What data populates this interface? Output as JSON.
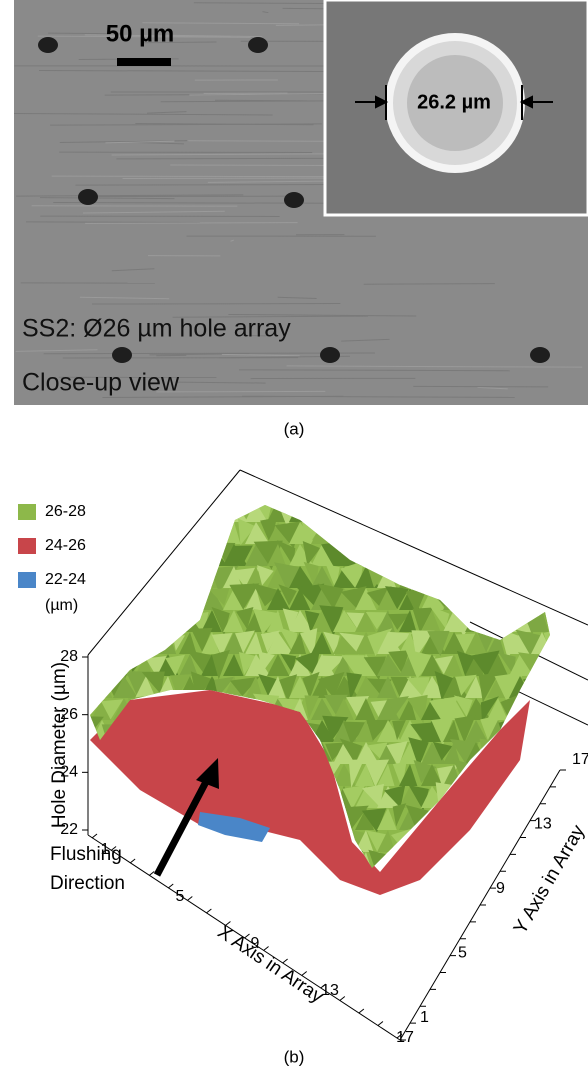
{
  "panel_a": {
    "scale_bar": "50 µm",
    "inset_measure": "26.2 µm",
    "caption_lines": [
      "SS2: Ø26 µm hole array",
      "Close-up view"
    ],
    "label": "(a)"
  },
  "panel_b": {
    "legend": [
      {
        "label": "26-28",
        "color": "#8db84a"
      },
      {
        "label": "24-26",
        "color": "#c8454a"
      },
      {
        "label": "22-24",
        "color": "#4a86c8"
      }
    ],
    "legend_unit": "(µm)",
    "z_axis_title": "Hole Diameter (µm)",
    "z_ticks": [
      28,
      26,
      24,
      22
    ],
    "x_axis_title": "X Axis in Array",
    "x_ticks": [
      1,
      5,
      9,
      13,
      17
    ],
    "y_axis_title": "Y Axis in Array",
    "y_ticks": [
      1,
      5,
      9,
      13,
      17
    ],
    "annotation_lines": [
      "Flushing",
      "Direction"
    ],
    "label": "(b)"
  }
}
